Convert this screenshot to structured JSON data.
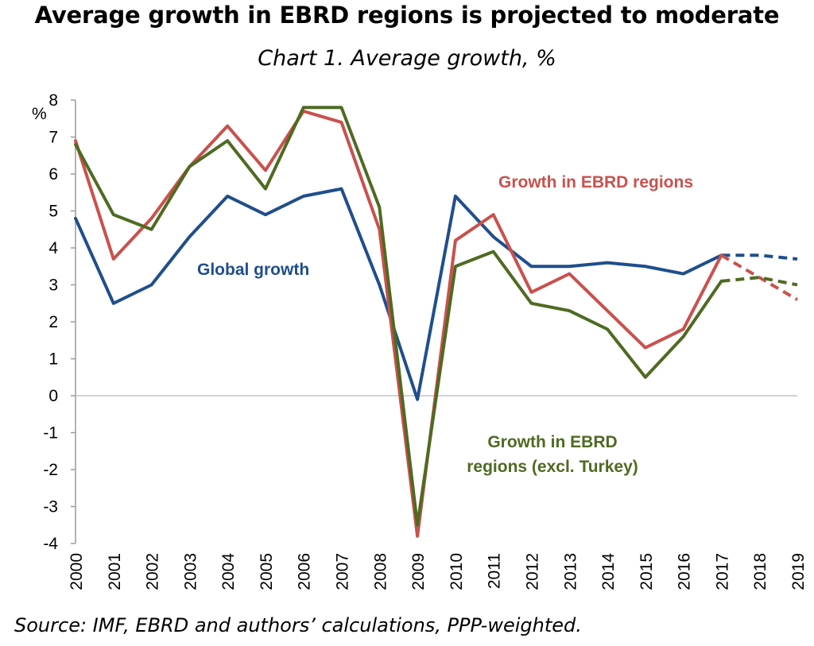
{
  "title": "Average growth in EBRD regions is projected to moderate",
  "subtitle": "Chart 1. Average growth, %",
  "source": "Source: IMF, EBRD and authors’ calculations, PPP-weighted.",
  "chart_data": {
    "type": "line",
    "ylabel": "%",
    "ylim": [
      -4,
      8
    ],
    "yticks": [
      "8",
      "7",
      "6",
      "5",
      "4",
      "3",
      "2",
      "1",
      "0",
      "-1",
      "-2",
      "-3",
      "-4"
    ],
    "x": [
      "2000",
      "2001",
      "2002",
      "2003",
      "2004",
      "2005",
      "2006",
      "2007",
      "2008",
      "2009",
      "2010",
      "2011",
      "2012",
      "2013",
      "2014",
      "2015",
      "2016",
      "2017",
      "2018",
      "2019"
    ],
    "projection_from": "2017",
    "grid": false,
    "series": [
      {
        "name": "Global growth",
        "color": "#1f4e8c",
        "values": [
          4.8,
          2.5,
          3.0,
          4.3,
          5.4,
          4.9,
          5.4,
          5.6,
          3.0,
          -0.1,
          5.4,
          4.3,
          3.5,
          3.5,
          3.6,
          3.5,
          3.3,
          3.8,
          3.8,
          3.7
        ]
      },
      {
        "name": "Growth in EBRD regions",
        "color": "#c9514d",
        "values": [
          6.9,
          3.7,
          4.8,
          6.2,
          7.3,
          6.1,
          7.7,
          7.4,
          4.5,
          -3.8,
          4.2,
          4.9,
          2.8,
          3.3,
          2.3,
          1.3,
          1.8,
          3.8,
          3.2,
          2.6
        ]
      },
      {
        "name": "Growth in EBRD regions (excl. Turkey)",
        "label_lines": [
          "Growth in EBRD",
          "regions (excl. Turkey)"
        ],
        "color": "#4f6a22",
        "values": [
          6.8,
          4.9,
          4.5,
          6.2,
          6.9,
          5.6,
          7.8,
          7.8,
          5.1,
          -3.5,
          3.5,
          3.9,
          2.5,
          2.3,
          1.8,
          0.5,
          1.6,
          3.1,
          3.2,
          3.0
        ]
      }
    ]
  }
}
